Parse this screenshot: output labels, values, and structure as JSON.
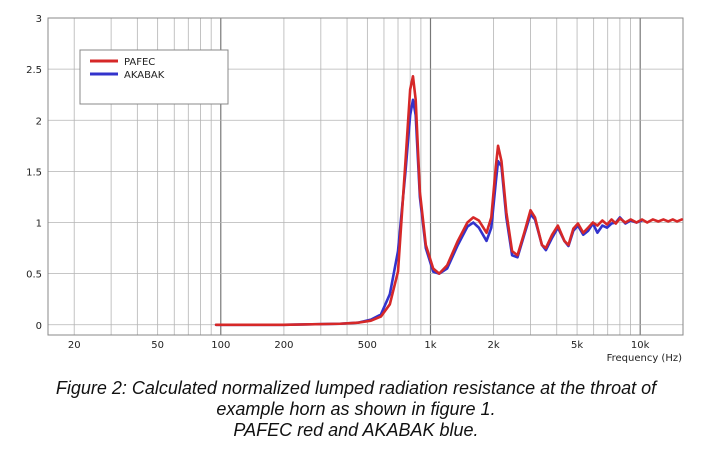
{
  "chart_data": {
    "type": "line",
    "xscale": "log",
    "xlim": [
      15,
      16000
    ],
    "ylim": [
      -0.1,
      3
    ],
    "grid": true,
    "xlabel": "Frequency  (Hz)",
    "ylabel": "",
    "yticks": [
      0,
      0.5,
      1,
      1.5,
      2,
      2.5,
      3
    ],
    "ytick_labels": [
      "0",
      "0.5",
      "1",
      "1.5",
      "2",
      "2.5",
      "3"
    ],
    "xticks": [
      20,
      50,
      100,
      200,
      500,
      1000,
      2000,
      5000,
      10000
    ],
    "xtick_labels": [
      "20",
      "50",
      "100",
      "200",
      "500",
      "1k",
      "2k",
      "5k",
      "10k"
    ],
    "legend_position": "top-left",
    "series": [
      {
        "name": "PAFEC",
        "color": "#d62828",
        "points": [
          [
            95,
            0
          ],
          [
            200,
            0
          ],
          [
            370,
            0.01
          ],
          [
            450,
            0.02
          ],
          [
            520,
            0.04
          ],
          [
            580,
            0.08
          ],
          [
            640,
            0.2
          ],
          [
            700,
            0.52
          ],
          [
            760,
            1.6
          ],
          [
            800,
            2.3
          ],
          [
            825,
            2.43
          ],
          [
            850,
            2.2
          ],
          [
            890,
            1.3
          ],
          [
            950,
            0.78
          ],
          [
            1030,
            0.55
          ],
          [
            1100,
            0.5
          ],
          [
            1200,
            0.58
          ],
          [
            1350,
            0.82
          ],
          [
            1500,
            1.0
          ],
          [
            1600,
            1.05
          ],
          [
            1700,
            1.02
          ],
          [
            1850,
            0.9
          ],
          [
            1950,
            1.05
          ],
          [
            2050,
            1.55
          ],
          [
            2100,
            1.75
          ],
          [
            2180,
            1.6
          ],
          [
            2300,
            1.1
          ],
          [
            2450,
            0.72
          ],
          [
            2600,
            0.68
          ],
          [
            2800,
            0.9
          ],
          [
            3000,
            1.12
          ],
          [
            3150,
            1.05
          ],
          [
            3400,
            0.78
          ],
          [
            3550,
            0.75
          ],
          [
            3800,
            0.88
          ],
          [
            4050,
            0.97
          ],
          [
            4350,
            0.82
          ],
          [
            4550,
            0.78
          ],
          [
            4800,
            0.94
          ],
          [
            5050,
            0.99
          ],
          [
            5350,
            0.9
          ],
          [
            5650,
            0.95
          ],
          [
            5950,
            1.0
          ],
          [
            6250,
            0.97
          ],
          [
            6600,
            1.02
          ],
          [
            6950,
            0.98
          ],
          [
            7300,
            1.03
          ],
          [
            7650,
            0.99
          ],
          [
            8000,
            1.04
          ],
          [
            8500,
            1.0
          ],
          [
            9000,
            1.03
          ],
          [
            9600,
            1.0
          ],
          [
            10200,
            1.03
          ],
          [
            10800,
            1.0
          ],
          [
            11500,
            1.03
          ],
          [
            12200,
            1.01
          ],
          [
            12900,
            1.03
          ],
          [
            13600,
            1.01
          ],
          [
            14300,
            1.03
          ],
          [
            15000,
            1.01
          ],
          [
            15800,
            1.03
          ]
        ]
      },
      {
        "name": "AKABAK",
        "color": "#3333cc",
        "points": [
          [
            95,
            0
          ],
          [
            200,
            0
          ],
          [
            370,
            0.01
          ],
          [
            450,
            0.02
          ],
          [
            520,
            0.05
          ],
          [
            580,
            0.1
          ],
          [
            640,
            0.3
          ],
          [
            700,
            0.72
          ],
          [
            760,
            1.5
          ],
          [
            800,
            2.05
          ],
          [
            825,
            2.2
          ],
          [
            850,
            2.05
          ],
          [
            890,
            1.25
          ],
          [
            950,
            0.75
          ],
          [
            1030,
            0.52
          ],
          [
            1100,
            0.5
          ],
          [
            1200,
            0.55
          ],
          [
            1350,
            0.78
          ],
          [
            1500,
            0.96
          ],
          [
            1600,
            1.0
          ],
          [
            1700,
            0.95
          ],
          [
            1850,
            0.82
          ],
          [
            1950,
            0.95
          ],
          [
            2050,
            1.4
          ],
          [
            2100,
            1.6
          ],
          [
            2180,
            1.55
          ],
          [
            2300,
            1.05
          ],
          [
            2450,
            0.68
          ],
          [
            2600,
            0.66
          ],
          [
            2800,
            0.88
          ],
          [
            3000,
            1.08
          ],
          [
            3150,
            1.03
          ],
          [
            3400,
            0.78
          ],
          [
            3550,
            0.73
          ],
          [
            3800,
            0.85
          ],
          [
            4050,
            0.95
          ],
          [
            4350,
            0.82
          ],
          [
            4550,
            0.77
          ],
          [
            4800,
            0.92
          ],
          [
            5050,
            0.97
          ],
          [
            5350,
            0.88
          ],
          [
            5650,
            0.92
          ],
          [
            5950,
            0.99
          ],
          [
            6250,
            0.9
          ],
          [
            6600,
            0.97
          ],
          [
            6950,
            0.95
          ],
          [
            7300,
            0.99
          ],
          [
            7650,
            1.0
          ],
          [
            8000,
            1.05
          ],
          [
            8500,
            0.99
          ],
          [
            9000,
            1.02
          ],
          [
            9600,
            1.0
          ],
          [
            10200,
            1.02
          ]
        ]
      }
    ]
  },
  "caption": {
    "line1": "Figure 2: Calculated normalized lumped radiation resistance at the throat of",
    "line2": "example horn as shown in figure 1.",
    "line3": "PAFEC red and AKABAK blue."
  }
}
